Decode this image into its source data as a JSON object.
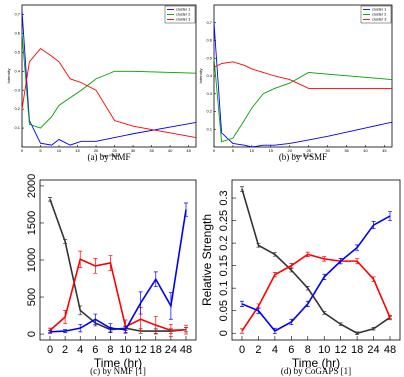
{
  "chart_data": [
    {
      "type": "line",
      "caption": "(a) by NMF",
      "xlabel": "Time Point",
      "ylabel": "Intensity",
      "x": [
        0,
        2,
        5,
        8,
        10,
        13,
        16,
        20,
        25,
        30,
        47
      ],
      "series": [
        {
          "name": "cluster 1",
          "color": "#0000ff",
          "values": [
            0.72,
            0.14,
            0.02,
            0.01,
            0.04,
            0.01,
            0.03,
            0.03,
            0.05,
            0.07,
            0.13
          ]
        },
        {
          "name": "cluster 2",
          "color": "#00a000",
          "values": [
            0.6,
            0.12,
            0.1,
            0.16,
            0.22,
            0.26,
            0.3,
            0.36,
            0.4,
            0.4,
            0.39
          ]
        },
        {
          "name": "cluster 3",
          "color": "#ff0000",
          "values": [
            0.2,
            0.45,
            0.52,
            0.48,
            0.45,
            0.36,
            0.34,
            0.3,
            0.14,
            0.11,
            0.05
          ]
        }
      ],
      "xlim": [
        0,
        47
      ],
      "xticks": [
        0,
        5,
        10,
        15,
        20,
        25,
        30,
        35,
        40,
        45
      ],
      "ylim": [
        0,
        0.75
      ],
      "yticks": [
        0.1,
        0.2,
        0.3,
        0.4,
        0.5,
        0.6,
        0.7
      ],
      "legend": "upper right"
    },
    {
      "type": "line",
      "caption": "(b) by VSMF",
      "xlabel": "Time Point",
      "ylabel": "Intensity",
      "x": [
        0,
        2,
        5,
        8,
        10,
        13,
        16,
        20,
        25,
        30,
        47
      ],
      "series": [
        {
          "name": "cluster 1",
          "color": "#0000ff",
          "values": [
            0.7,
            0.08,
            0.02,
            0.01,
            0.0,
            0.01,
            0.01,
            0.02,
            0.04,
            0.06,
            0.14
          ]
        },
        {
          "name": "cluster 2",
          "color": "#00a000",
          "values": [
            0.5,
            0.03,
            0.05,
            0.15,
            0.22,
            0.3,
            0.33,
            0.36,
            0.42,
            0.41,
            0.38
          ]
        },
        {
          "name": "cluster 3",
          "color": "#ff0000",
          "values": [
            0.45,
            0.47,
            0.48,
            0.46,
            0.44,
            0.42,
            0.4,
            0.38,
            0.33,
            0.33,
            0.33
          ]
        }
      ],
      "xlim": [
        0,
        47
      ],
      "xticks": [
        0,
        5,
        10,
        15,
        20,
        25,
        30,
        35,
        40,
        45
      ],
      "ylim": [
        0,
        0.8
      ],
      "yticks": [
        0.1,
        0.2,
        0.3,
        0.4,
        0.5,
        0.6,
        0.7
      ],
      "legend": "upper right"
    },
    {
      "type": "line",
      "caption": "(c) by NMF [1]",
      "xlabel": "Time (hr)",
      "categories": [
        "0",
        "2",
        "4",
        "6",
        "8",
        "10",
        "12",
        "18",
        "24",
        "48"
      ],
      "series": [
        {
          "color": "#333333",
          "values": [
            1820,
            1250,
            320,
            150,
            60,
            80,
            40,
            40,
            40,
            60
          ],
          "errors": [
            25,
            25,
            60,
            40,
            30,
            30,
            30,
            30,
            30,
            30
          ]
        },
        {
          "color": "#ff0000",
          "values": [
            50,
            230,
            1010,
            920,
            960,
            100,
            200,
            120,
            50,
            60
          ],
          "errors": [
            30,
            90,
            110,
            100,
            100,
            90,
            160,
            120,
            80,
            60
          ]
        },
        {
          "color": "#0000ff",
          "values": [
            30,
            40,
            80,
            200,
            80,
            60,
            420,
            740,
            380,
            1680
          ],
          "errors": [
            20,
            20,
            50,
            70,
            60,
            40,
            150,
            100,
            180,
            90
          ]
        }
      ],
      "ylim": [
        -80,
        2080
      ],
      "yticks": [
        0,
        500,
        1000,
        1500,
        2000
      ]
    },
    {
      "type": "line",
      "caption": "(d) by CoGAPS [1]",
      "xlabel": "Time (hr)",
      "ylabel": "Relative Strength",
      "categories": [
        "0",
        "2",
        "4",
        "6",
        "8",
        "10",
        "12",
        "18",
        "24",
        "48"
      ],
      "series": [
        {
          "color": "#333333",
          "values": [
            0.32,
            0.195,
            0.175,
            0.14,
            0.1,
            0.045,
            0.02,
            0.0,
            0.01,
            0.035
          ],
          "errors": [
            0.005,
            0.004,
            0.004,
            0.004,
            0.004,
            0.003,
            0.003,
            0.003,
            0.003,
            0.003
          ]
        },
        {
          "color": "#ff0000",
          "values": [
            0.005,
            0.06,
            0.13,
            0.15,
            0.175,
            0.165,
            0.16,
            0.16,
            0.12,
            0.035
          ],
          "errors": [
            0.005,
            0.005,
            0.005,
            0.005,
            0.005,
            0.005,
            0.006,
            0.006,
            0.005,
            0.005
          ]
        },
        {
          "color": "#0000ff",
          "values": [
            0.065,
            0.05,
            0.005,
            0.025,
            0.065,
            0.125,
            0.16,
            0.19,
            0.24,
            0.26
          ],
          "errors": [
            0.006,
            0.006,
            0.006,
            0.006,
            0.006,
            0.006,
            0.006,
            0.006,
            0.008,
            0.01
          ]
        }
      ],
      "ylim": [
        -0.015,
        0.34
      ],
      "yticks": [
        0,
        0.05,
        0.1,
        0.15,
        0.2,
        0.25,
        0.3
      ]
    }
  ]
}
